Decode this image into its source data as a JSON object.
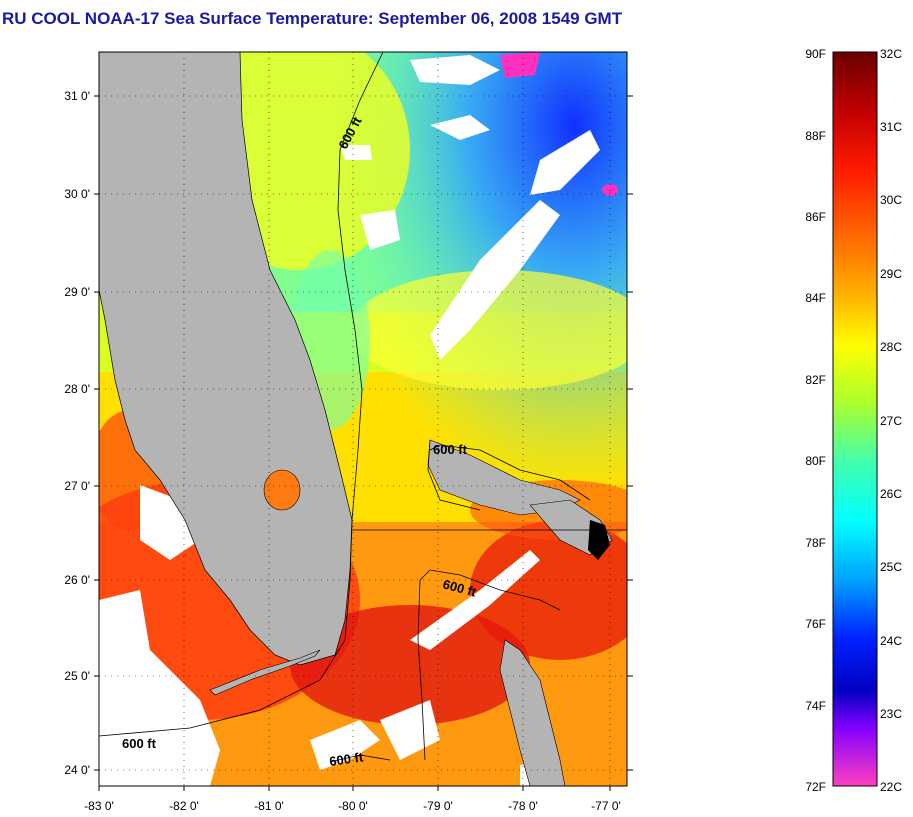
{
  "title": "RU COOL  NOAA-17  Sea Surface Temperature:  September 06, 2008 1549 GMT",
  "latitude_labels": [
    "31 0'",
    "30 0'",
    "29 0'",
    "28 0'",
    "27 0'",
    "26 0'",
    "25 0'",
    "24 0'"
  ],
  "longitude_labels": [
    "-83 0'",
    "-82 0'",
    "-81 0'",
    "-80 0'",
    "-79 0'",
    "-78 0'",
    "-77 0'"
  ],
  "isobath_labels": [
    "600 ft",
    "600 ft",
    "600 ft",
    "600 ft"
  ],
  "colorbar": {
    "fahrenheit": [
      "90F",
      "88F",
      "86F",
      "84F",
      "82F",
      "80F",
      "78F",
      "76F",
      "74F",
      "72F"
    ],
    "celsius": [
      "32C",
      "31C",
      "30C",
      "29C",
      "28C",
      "27C",
      "26C",
      "25C",
      "24C",
      "23C",
      "22C"
    ],
    "colors": {
      "land": "#b4b4b4",
      "cloud": "#ffffff"
    }
  }
}
